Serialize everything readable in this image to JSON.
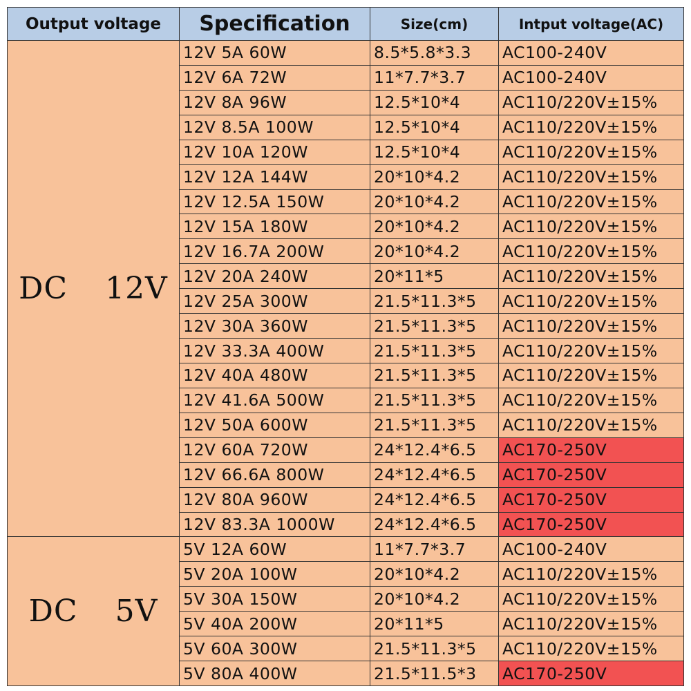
{
  "headers": {
    "output_voltage": "Output voltage",
    "specification": "Specification",
    "size": "Size(cm)",
    "input_voltage": "Intput voltage(AC)"
  },
  "colors": {
    "header_bg": "#b8cde6",
    "cell_bg": "#f8c29a",
    "highlight_bg": "#f25252",
    "border": "#333333"
  },
  "groups": [
    {
      "label": "DC  12V",
      "rows": [
        {
          "spec": "12V 5A 60W",
          "size": "8.5*5.8*3.3",
          "input": "AC100-240V",
          "highlight": false
        },
        {
          "spec": "12V 6A 72W",
          "size": "11*7.7*3.7",
          "input": "AC100-240V",
          "highlight": false
        },
        {
          "spec": "12V 8A 96W",
          "size": "12.5*10*4",
          "input": "AC110/220V±15%",
          "highlight": false
        },
        {
          "spec": "12V 8.5A 100W",
          "size": "12.5*10*4",
          "input": "AC110/220V±15%",
          "highlight": false
        },
        {
          "spec": "12V 10A 120W",
          "size": "12.5*10*4",
          "input": "AC110/220V±15%",
          "highlight": false
        },
        {
          "spec": "12V 12A 144W",
          "size": "20*10*4.2",
          "input": "AC110/220V±15%",
          "highlight": false
        },
        {
          "spec": "12V 12.5A 150W",
          "size": "20*10*4.2",
          "input": "AC110/220V±15%",
          "highlight": false
        },
        {
          "spec": "12V 15A 180W",
          "size": "20*10*4.2",
          "input": "AC110/220V±15%",
          "highlight": false
        },
        {
          "spec": "12V 16.7A 200W",
          "size": "20*10*4.2",
          "input": "AC110/220V±15%",
          "highlight": false
        },
        {
          "spec": "12V 20A 240W",
          "size": "20*11*5",
          "input": "AC110/220V±15%",
          "highlight": false
        },
        {
          "spec": "12V 25A 300W",
          "size": "21.5*11.3*5",
          "input": "AC110/220V±15%",
          "highlight": false
        },
        {
          "spec": "12V 30A 360W",
          "size": "21.5*11.3*5",
          "input": "AC110/220V±15%",
          "highlight": false
        },
        {
          "spec": "12V 33.3A 400W",
          "size": "21.5*11.3*5",
          "input": "AC110/220V±15%",
          "highlight": false
        },
        {
          "spec": "12V 40A 480W",
          "size": "21.5*11.3*5",
          "input": "AC110/220V±15%",
          "highlight": false
        },
        {
          "spec": "12V 41.6A 500W",
          "size": "21.5*11.3*5",
          "input": "AC110/220V±15%",
          "highlight": false
        },
        {
          "spec": "12V 50A 600W",
          "size": "21.5*11.3*5",
          "input": "AC110/220V±15%",
          "highlight": false
        },
        {
          "spec": "12V 60A 720W",
          "size": "24*12.4*6.5",
          "input": "AC170-250V",
          "highlight": true
        },
        {
          "spec": "12V 66.6A 800W",
          "size": "24*12.4*6.5",
          "input": "AC170-250V",
          "highlight": true
        },
        {
          "spec": "12V 80A 960W",
          "size": "24*12.4*6.5",
          "input": "AC170-250V",
          "highlight": true
        },
        {
          "spec": "12V 83.3A 1000W",
          "size": "24*12.4*6.5",
          "input": "AC170-250V",
          "highlight": true
        }
      ]
    },
    {
      "label": "DC  5V",
      "rows": [
        {
          "spec": "5V 12A 60W",
          "size": "11*7.7*3.7",
          "input": "AC100-240V",
          "highlight": false
        },
        {
          "spec": "5V 20A 100W",
          "size": "20*10*4.2",
          "input": "AC110/220V±15%",
          "highlight": false
        },
        {
          "spec": "5V 30A 150W",
          "size": "20*10*4.2",
          "input": "AC110/220V±15%",
          "highlight": false
        },
        {
          "spec": "5V 40A 200W",
          "size": "20*11*5",
          "input": "AC110/220V±15%",
          "highlight": false
        },
        {
          "spec": "5V 60A 300W",
          "size": "21.5*11.3*5",
          "input": "AC110/220V±15%",
          "highlight": false
        },
        {
          "spec": "5V 80A 400W",
          "size": "21.5*11.5*3",
          "input": "AC170-250V",
          "highlight": true
        }
      ]
    }
  ]
}
